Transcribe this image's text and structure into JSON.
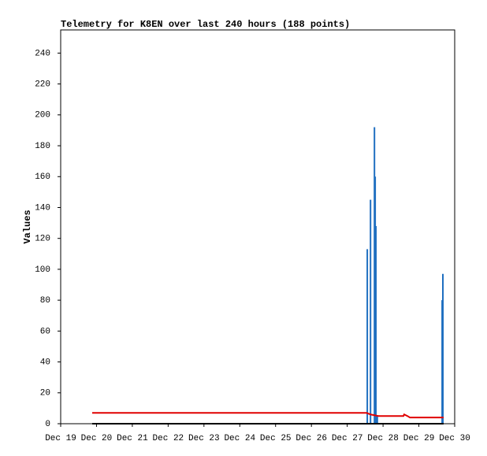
{
  "chart_data": {
    "type": "line",
    "title": "Telemetry for K8EN over last 240 hours (188 points)",
    "y_label": "Values",
    "xlim": [
      0,
      11
    ],
    "xticks": [
      {
        "value": 0,
        "label": "Dec 19"
      },
      {
        "value": 1,
        "label": "Dec 20"
      },
      {
        "value": 2,
        "label": "Dec 21"
      },
      {
        "value": 3,
        "label": "Dec 22"
      },
      {
        "value": 4,
        "label": "Dec 23"
      },
      {
        "value": 5,
        "label": "Dec 24"
      },
      {
        "value": 6,
        "label": "Dec 25"
      },
      {
        "value": 7,
        "label": "Dec 26"
      },
      {
        "value": 8,
        "label": "Dec 27"
      },
      {
        "value": 9,
        "label": "Dec 28"
      },
      {
        "value": 10,
        "label": "Dec 29"
      },
      {
        "value": 11,
        "label": "Dec 30"
      }
    ],
    "ylim": [
      0,
      255
    ],
    "yticks": [
      0,
      20,
      40,
      60,
      80,
      100,
      120,
      140,
      160,
      180,
      200,
      220,
      240
    ],
    "series": [
      {
        "style": "impulse",
        "color": "#1f6fc0",
        "x": [
          8.56,
          8.65,
          8.76,
          8.78,
          8.8,
          8.84,
          10.65,
          10.67
        ],
        "values": [
          113,
          145,
          192,
          160,
          128,
          5,
          80,
          97
        ]
      },
      {
        "style": "line",
        "color": "#000000",
        "x": [
          0.88,
          10.69
        ],
        "values": [
          0,
          0
        ]
      },
      {
        "style": "line",
        "color": "#e00000",
        "x": [
          0.88,
          8.54,
          8.65,
          8.87,
          9.57,
          9.59,
          9.68,
          9.75,
          10.69
        ],
        "values": [
          7,
          7,
          6,
          5,
          5,
          6,
          5,
          4,
          4
        ]
      }
    ]
  }
}
